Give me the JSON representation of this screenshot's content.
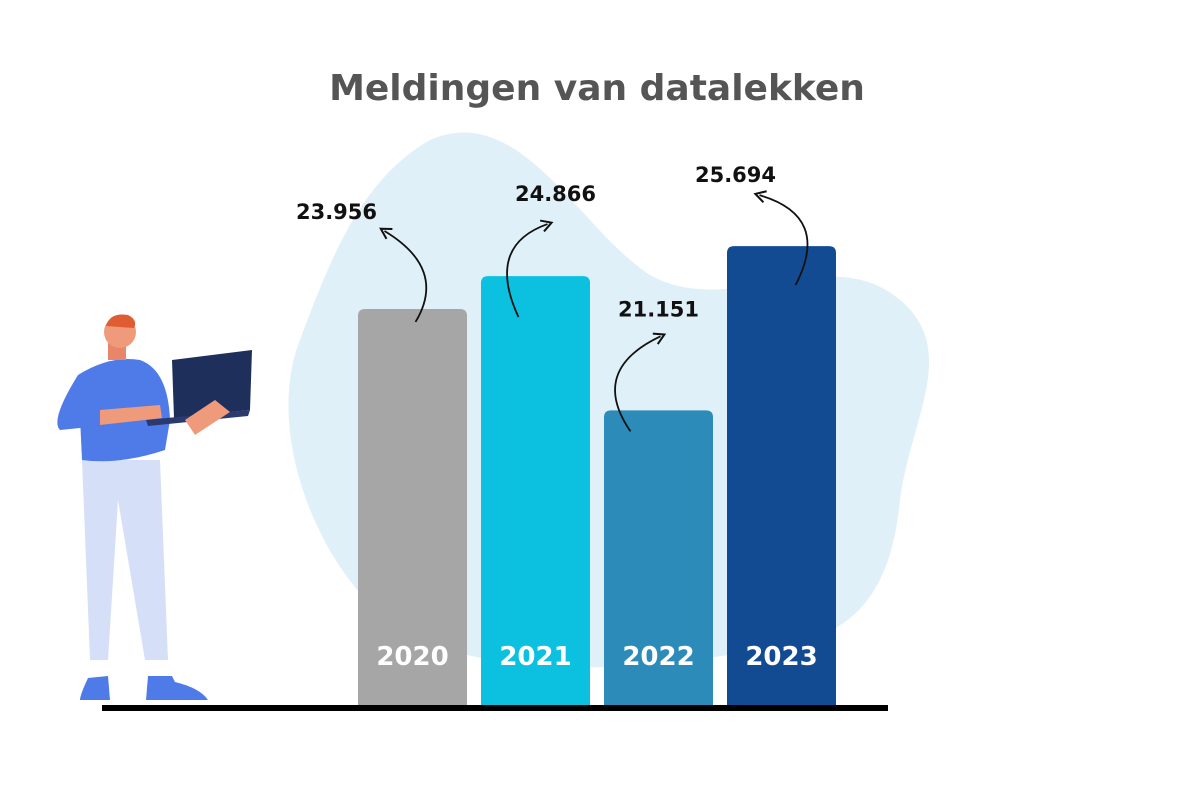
{
  "chart_data": {
    "type": "bar",
    "title": "Meldingen van datalekken",
    "categories": [
      "2020",
      "2021",
      "2022",
      "2023"
    ],
    "values": [
      23956,
      24866,
      21151,
      25694
    ],
    "value_labels": [
      "23.956",
      "24.866",
      "21.151",
      "25.694"
    ],
    "colors": [
      "#a6a6a6",
      "#0cc0df",
      "#2d8bba",
      "#134b92"
    ],
    "ylim": [
      13000,
      26500
    ]
  }
}
